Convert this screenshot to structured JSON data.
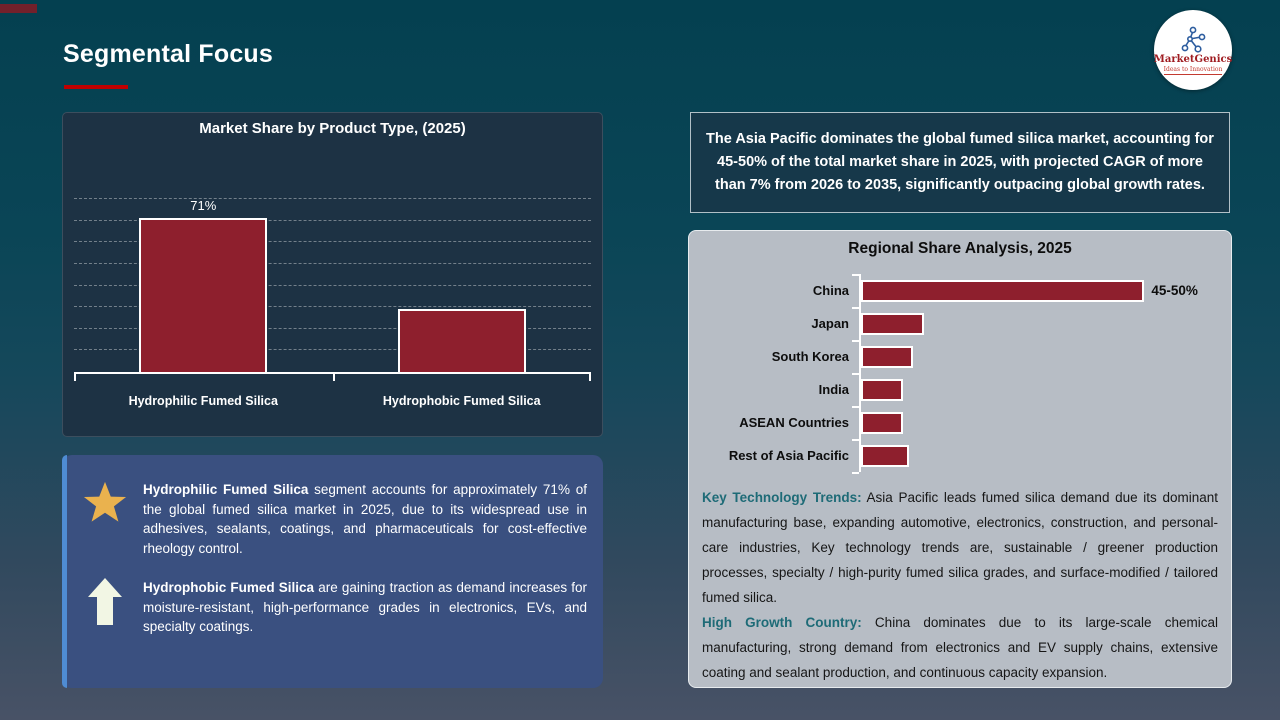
{
  "slide": {
    "title": "Segmental Focus"
  },
  "logo": {
    "company": "MarketGenics",
    "tagline": "Ideas to Innovation",
    "icon": "molecule-network-icon"
  },
  "highlight_banner": {
    "text": "The Asia Pacific dominates the global fumed silica market, accounting for 45-50% of the total market share in 2025, with projected CAGR of more than 7% from 2026 to 2035, significantly outpacing global growth rates."
  },
  "chart_data": [
    {
      "type": "bar",
      "title": "Market Share by Product Type, (2025)",
      "categories": [
        "Hydrophilic Fumed Silica",
        "Hydrophobic Fumed Silica"
      ],
      "values": [
        71,
        29
      ],
      "value_labels": [
        "71%",
        ""
      ],
      "ylim": [
        0,
        80
      ],
      "gridlines": 8,
      "gridline_step": 10,
      "grid": "dashed horizontal",
      "bar_color": "#8e1f2d",
      "bar_border": "#ffffff"
    },
    {
      "type": "bar",
      "orientation": "horizontal",
      "title": "Regional Share Analysis, 2025",
      "categories": [
        "China",
        "Japan",
        "South Korea",
        "India",
        "ASEAN Countries",
        "Rest of Asia Pacific"
      ],
      "values_est": [
        47.5,
        10.5,
        8.7,
        7,
        7,
        8
      ],
      "value_labels": [
        "45-50%",
        "",
        "",
        "",
        "",
        ""
      ],
      "xlim": [
        0,
        60
      ],
      "grid": "off",
      "bar_color": "#8e1f2d",
      "bar_border": "#ffffff"
    }
  ],
  "regional": {
    "paragraphs": [
      {
        "lead": "Key Technology Trends:",
        "text": " Asia Pacific leads fumed silica demand due its dominant manufacturing base, expanding automotive, electronics, construction, and personal-care industries, Key technology trends are, sustainable / greener production processes, specialty / high-purity fumed silica grades, and surface-modified / tailored fumed silica."
      },
      {
        "lead": "High Growth Country:",
        "text": " China dominates due to its large-scale chemical manufacturing, strong demand from electronics and EV supply chains, extensive coating and sealant production, and continuous capacity expansion."
      }
    ]
  },
  "info_box": {
    "items": [
      {
        "icon": "star-icon",
        "lead": "Hydrophilic Fumed Silica",
        "text": " segment accounts for approximately 71% of the global fumed silica market in 2025, due to its widespread use in adhesives, sealants, coatings, and pharmaceuticals for cost-effective rheology control."
      },
      {
        "icon": "up-arrow-icon",
        "lead": "Hydrophobic Fumed Silica",
        "text": " are gaining traction as demand increases for moisture-resistant, high-performance grades in electronics, EVs, and specialty coatings."
      }
    ]
  },
  "colors": {
    "title_underline_red": "#c00000",
    "bar_maroon": "#8e1f2d",
    "chart_panel_navy": "#1d3244",
    "banner_teal": "#16384a",
    "regional_panel_gray": "#b7bdc5",
    "lead_teal": "#1e6b77",
    "info_box_blue": "#3a5080",
    "info_box_accent_blue": "#4f8cd3",
    "star_gold": "#eab24e"
  }
}
